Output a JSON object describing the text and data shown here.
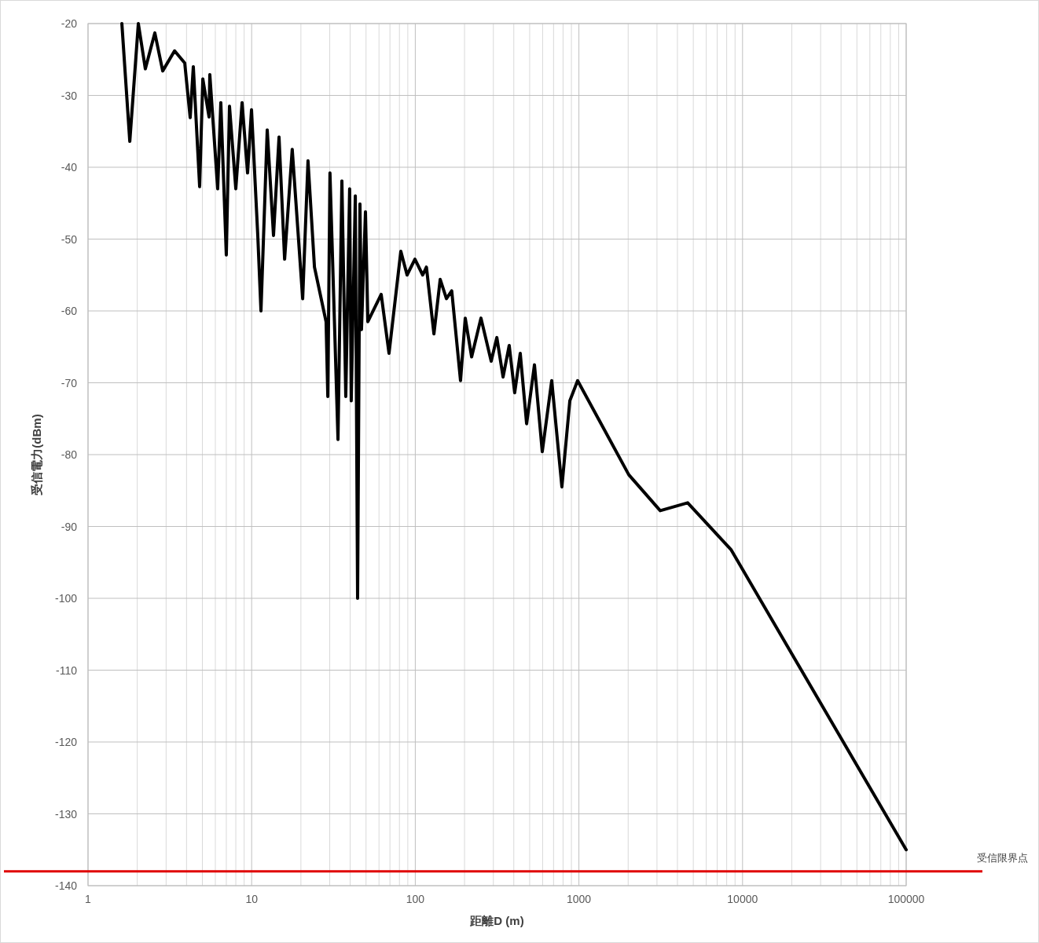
{
  "chart_data": {
    "type": "line",
    "xlabel": "距離D (m)",
    "ylabel": "受信電力(dBm)",
    "log": "x",
    "grid": true,
    "line_style": "solid",
    "marker": "none",
    "xlim": [
      1,
      100000
    ],
    "xticks": [
      1,
      10,
      100,
      1000,
      10000,
      100000
    ],
    "ylim": [
      -140,
      -20
    ],
    "yticks": [
      -140,
      -130,
      -120,
      -110,
      -100,
      -90,
      -80,
      -70,
      -60,
      -50,
      -40,
      -30,
      -20
    ],
    "ref_lines": [
      {
        "axis": "y",
        "value": -138,
        "label": "受信限界点",
        "color": "#e00000"
      }
    ],
    "series": [
      {
        "color": "#000000",
        "x": [
          1.61,
          1.8,
          2.03,
          2.24,
          2.56,
          2.86,
          3.38,
          3.9,
          4.21,
          4.4,
          4.81,
          5.03,
          5.49,
          5.55,
          6.2,
          6.48,
          7.0,
          7.32,
          8.0,
          8.74,
          9.44,
          9.98,
          10.9,
          11.4,
          12.45,
          13.6,
          14.7,
          15.9,
          17.7,
          20.5,
          22.1,
          24.2,
          28.5,
          29.2,
          30.1,
          33.7,
          35.6,
          37.6,
          39.7,
          40.6,
          43,
          44.4,
          45.9,
          46.9,
          49.6,
          51.3,
          61.9,
          69.1,
          81.6,
          89.1,
          99.5,
          111,
          117,
          130,
          142,
          155,
          167,
          189,
          202,
          221,
          252,
          291,
          315,
          344,
          375,
          405,
          438,
          479,
          535,
          597,
          682,
          787,
          880,
          982,
          2017,
          3140,
          4620,
          8490,
          100000
        ],
        "values": [
          -20,
          -36.4,
          -20,
          -26.3,
          -21.3,
          -26.6,
          -23.8,
          -25.5,
          -33.1,
          -26,
          -42.7,
          -27.7,
          -33,
          -27.1,
          -43,
          -31,
          -52.2,
          -31.5,
          -43,
          -31,
          -40.8,
          -32,
          -49.5,
          -60,
          -34.8,
          -49.5,
          -35.8,
          -52.8,
          -37.5,
          -58.3,
          -39.1,
          -53.9,
          -61.5,
          -71.9,
          -40.8,
          -77.9,
          -41.9,
          -71.9,
          -43,
          -72.5,
          -44,
          -100,
          -45.1,
          -62.6,
          -46.2,
          -61.5,
          -57.7,
          -65.9,
          -51.7,
          -55,
          -52.8,
          -55,
          -53.9,
          -63.2,
          -55.6,
          -58.3,
          -57.2,
          -69.7,
          -61,
          -66.4,
          -61,
          -67,
          -63.7,
          -69.2,
          -64.8,
          -71.4,
          -65.9,
          -75.7,
          -67.5,
          -79.6,
          -69.7,
          -84.5,
          -72.5,
          -69.7,
          -82.8,
          -87.8,
          -86.7,
          -93.2,
          -135
        ]
      }
    ]
  }
}
